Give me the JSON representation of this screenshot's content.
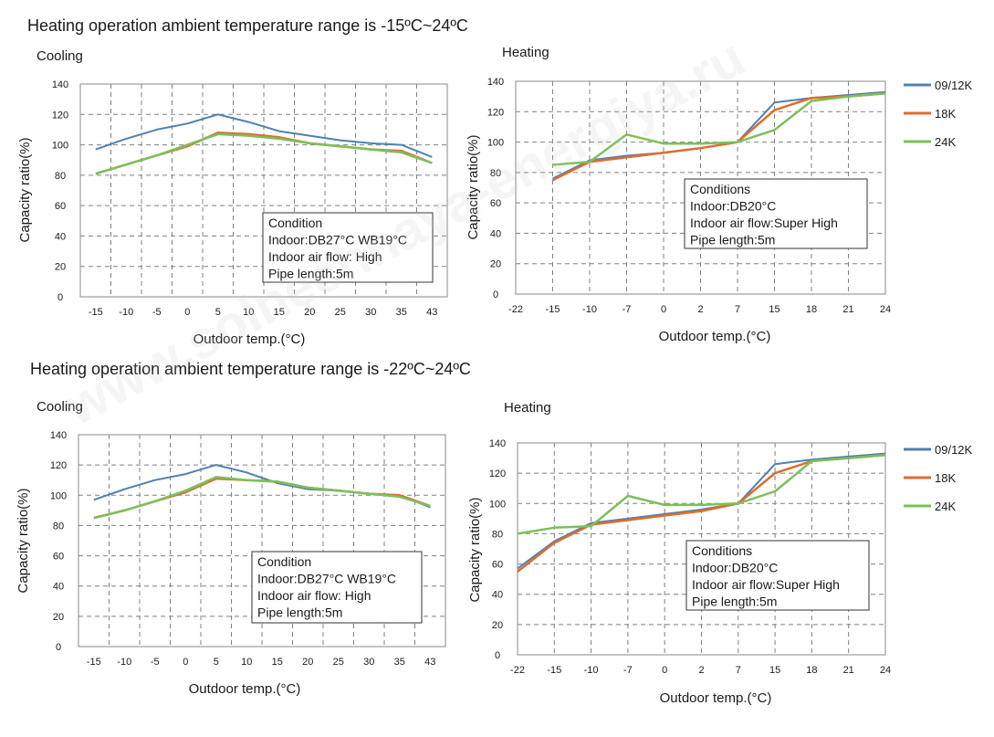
{
  "sections": [
    {
      "title": "Heating operation ambient temperature range is -15ºC~24ºC"
    },
    {
      "title": "Heating operation ambient temperature range is -22ºC~24ºC"
    }
  ],
  "watermark": "www.solnechnaya-energiya.ru",
  "colors": {
    "s0912K": "#4f81b3",
    "s18K": "#e06c2c",
    "s24K": "#7cc05a"
  },
  "chart_data": [
    {
      "type": "line",
      "title": "Cooling",
      "xlabel": "Outdoor temp.(°C)",
      "ylabel": "Capacity ratio(%)",
      "categories": [
        "-15",
        "-10",
        "-5",
        "0",
        "5",
        "10",
        "15",
        "20",
        "25",
        "30",
        "35",
        "43"
      ],
      "ylim": [
        0,
        140
      ],
      "yticks": [
        0,
        20,
        40,
        60,
        80,
        100,
        120,
        140
      ],
      "grid": true,
      "series": [
        {
          "values": [
            97,
            104,
            110,
            114,
            120,
            115,
            109,
            106,
            103,
            101,
            100,
            92
          ]
        },
        {
          "values": [
            81,
            87,
            93,
            99,
            108,
            107,
            105,
            101,
            99,
            97,
            96,
            88
          ]
        },
        {
          "values": [
            81,
            87,
            93,
            100,
            107,
            106,
            104,
            101,
            99,
            97,
            95,
            88
          ]
        }
      ],
      "annotation": {
        "lines": [
          "Condition",
          "Indoor:DB27°C WB19°C",
          "Indoor air flow: High",
          "Pipe length:5m"
        ]
      }
    },
    {
      "type": "line",
      "title": "Heating",
      "xlabel": "Outdoor temp.(°C)",
      "ylabel": "Capacity ratio(%)",
      "categories": [
        "-22",
        "-15",
        "-10",
        "-7",
        "0",
        "2",
        "7",
        "15",
        "18",
        "21",
        "24"
      ],
      "ylim": [
        0,
        140
      ],
      "yticks": [
        0,
        20,
        40,
        60,
        80,
        100,
        120,
        140
      ],
      "grid": true,
      "legend": "right",
      "series": [
        {
          "name": "09/12K",
          "values": [
            null,
            76,
            88,
            91,
            93,
            96,
            100,
            126,
            129,
            131,
            133
          ]
        },
        {
          "name": "18K",
          "values": [
            null,
            75,
            87,
            90,
            93,
            96,
            100,
            121,
            129,
            130,
            132
          ]
        },
        {
          "name": "24K",
          "values": [
            null,
            85,
            87,
            105,
            99,
            99,
            100,
            108,
            127,
            130,
            132
          ]
        }
      ],
      "annotation": {
        "lines": [
          "Conditions",
          "Indoor:DB20°C",
          "Indoor air flow:Super High",
          "Pipe length:5m"
        ]
      }
    },
    {
      "type": "line",
      "title": "Cooling",
      "xlabel": "Outdoor temp.(°C)",
      "ylabel": "Capacity ratio(%)",
      "categories": [
        "-15",
        "-10",
        "-5",
        "0",
        "5",
        "10",
        "15",
        "20",
        "25",
        "30",
        "35",
        "43"
      ],
      "ylim": [
        0,
        140
      ],
      "yticks": [
        0,
        20,
        40,
        60,
        80,
        100,
        120,
        140
      ],
      "grid": true,
      "series": [
        {
          "values": [
            97,
            104,
            110,
            114,
            120,
            115,
            108,
            104,
            103,
            101,
            100,
            92
          ]
        },
        {
          "values": [
            85,
            90,
            96,
            102,
            111,
            110,
            109,
            105,
            103,
            101,
            100,
            93
          ]
        },
        {
          "values": [
            85,
            90,
            96,
            103,
            112,
            110,
            109,
            105,
            103,
            101,
            99,
            93
          ]
        }
      ],
      "annotation": {
        "lines": [
          "Condition",
          "Indoor:DB27°C WB19°C",
          "Indoor air flow: High",
          "Pipe length:5m"
        ]
      }
    },
    {
      "type": "line",
      "title": "Heating",
      "xlabel": "Outdoor temp.(°C)",
      "ylabel": "Capacity ratio(%)",
      "categories": [
        "-22",
        "-15",
        "-10",
        "-7",
        "0",
        "2",
        "7",
        "15",
        "18",
        "21",
        "24"
      ],
      "ylim": [
        0,
        140
      ],
      "yticks": [
        0,
        20,
        40,
        60,
        80,
        100,
        120,
        140
      ],
      "grid": true,
      "legend": "right",
      "series": [
        {
          "name": "09/12K",
          "values": [
            57,
            75,
            87,
            90,
            93,
            96,
            100,
            126,
            129,
            131,
            133
          ]
        },
        {
          "name": "18K",
          "values": [
            55,
            74,
            86,
            89,
            92,
            95,
            100,
            120,
            128,
            130,
            132
          ]
        },
        {
          "name": "24K",
          "values": [
            80,
            84,
            85,
            105,
            99,
            99,
            100,
            108,
            128,
            130,
            132
          ]
        }
      ],
      "annotation": {
        "lines": [
          "Conditions",
          "Indoor:DB20°C",
          "Indoor air flow:Super High",
          "Pipe length:5m"
        ]
      }
    }
  ]
}
